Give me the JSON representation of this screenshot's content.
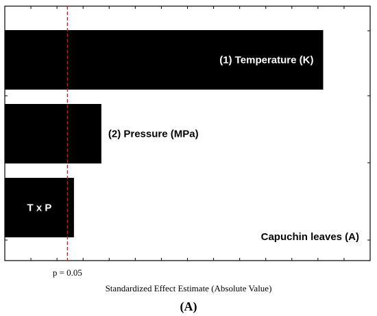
{
  "chart_data": {
    "type": "bar",
    "orientation": "horizontal",
    "categories": [
      "(1) Temperature (K)",
      "(2) Pressure (MPa)",
      "T x P"
    ],
    "values": [
      12.2,
      3.7,
      2.65
    ],
    "xlim": [
      0,
      14
    ],
    "reference_line": {
      "label": "p = 0.05",
      "value": 2.4,
      "color": "#dd1111",
      "style": "dashed"
    },
    "xlabel": "Standardized Effect Estimate (Absolute Value)",
    "annotation": "Capuchin leaves (A)",
    "panel_label": "(A)",
    "bar_color": "#000000",
    "grid": false
  }
}
